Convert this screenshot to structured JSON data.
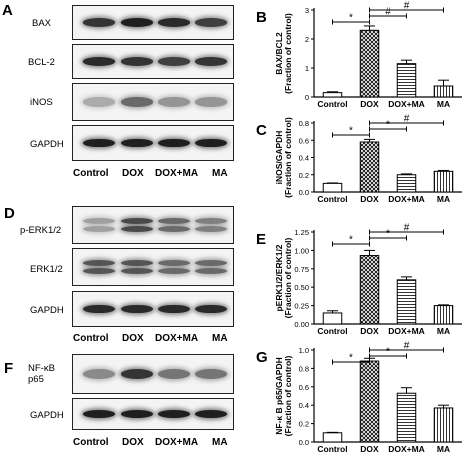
{
  "panels": {
    "A": {
      "letter": "A",
      "blots": [
        {
          "label": "BAX",
          "intensity": [
            0.85,
            0.95,
            0.9,
            0.8
          ]
        },
        {
          "label": "BCL-2",
          "intensity": [
            0.9,
            0.85,
            0.8,
            0.85
          ]
        },
        {
          "label": "iNOS",
          "intensity": [
            0.3,
            0.6,
            0.4,
            0.4
          ]
        },
        {
          "label": "GAPDH",
          "intensity": [
            0.95,
            0.95,
            0.95,
            0.95
          ]
        }
      ],
      "lanes": [
        "Control",
        "DOX",
        "DOX+MA",
        "MA"
      ]
    },
    "D": {
      "letter": "D",
      "blots": [
        {
          "label": "p-ERK1/2",
          "intensity": [
            0.35,
            0.75,
            0.6,
            0.5
          ],
          "double": true
        },
        {
          "label": "ERK1/2",
          "intensity": [
            0.7,
            0.7,
            0.6,
            0.6
          ],
          "double": true
        },
        {
          "label": "GAPDH",
          "intensity": [
            0.9,
            0.9,
            0.9,
            0.9
          ]
        }
      ],
      "lanes": [
        "Control",
        "DOX",
        "DOX+MA",
        "MA"
      ]
    },
    "F": {
      "letter": "F",
      "blots": [
        {
          "label": "NF-κB p65",
          "intensity": [
            0.45,
            0.85,
            0.55,
            0.55
          ]
        },
        {
          "label": "GAPDH",
          "intensity": [
            0.95,
            0.95,
            0.95,
            0.95
          ]
        }
      ],
      "lanes": [
        "Control",
        "DOX",
        "DOX+MA",
        "MA"
      ]
    }
  },
  "chart_data": [
    {
      "letter": "B",
      "type": "bar",
      "categories": [
        "Control",
        "DOX",
        "DOX+MA",
        "MA"
      ],
      "values": [
        0.15,
        2.3,
        1.15,
        0.38
      ],
      "errors": [
        0.03,
        0.15,
        0.12,
        0.2
      ],
      "ylabel": "BAX/BCL2\n(Fraction of control)",
      "ylim": [
        0,
        3
      ],
      "yticks": [
        "0",
        "1",
        "2",
        "3"
      ],
      "ytick_values": [
        0,
        1,
        2,
        3
      ],
      "patterns": [
        "white",
        "cross",
        "hlines",
        "vlines"
      ],
      "significance": [
        {
          "from": 0,
          "to": 1,
          "symbol": "*"
        },
        {
          "from": 1,
          "to": 2,
          "symbol": "#"
        },
        {
          "from": 1,
          "to": 3,
          "symbol": "#"
        }
      ]
    },
    {
      "letter": "C",
      "type": "bar",
      "categories": [
        "Control",
        "DOX",
        "DOX+MA",
        "MA"
      ],
      "values": [
        0.1,
        0.58,
        0.2,
        0.24
      ],
      "errors": [
        0.005,
        0.03,
        0.01,
        0.01
      ],
      "ylabel": "iNOS/GAPDH\n(Fraction of control)",
      "ylim": [
        0,
        0.8
      ],
      "yticks": [
        "0.0",
        "0.2",
        "0.4",
        "0.6",
        "0.8"
      ],
      "ytick_values": [
        0,
        0.2,
        0.4,
        0.6,
        0.8
      ],
      "patterns": [
        "white",
        "cross",
        "hlines",
        "vlines"
      ],
      "significance": [
        {
          "from": 0,
          "to": 1,
          "symbol": "*"
        },
        {
          "from": 1,
          "to": 2,
          "symbol": "*"
        },
        {
          "from": 1,
          "to": 3,
          "symbol": "#"
        }
      ]
    },
    {
      "letter": "E",
      "type": "bar",
      "categories": [
        "Control",
        "DOX",
        "DOX+MA",
        "MA"
      ],
      "values": [
        0.15,
        0.93,
        0.6,
        0.25
      ],
      "errors": [
        0.03,
        0.07,
        0.04,
        0.01
      ],
      "ylabel": "pERK1/2/ERK1/2\n(Fraction of control)",
      "ylim": [
        0,
        1.25
      ],
      "yticks": [
        "0.00",
        "0.25",
        "0.50",
        "0.75",
        "1.00",
        "1.25"
      ],
      "ytick_values": [
        0,
        0.25,
        0.5,
        0.75,
        1.0,
        1.25
      ],
      "patterns": [
        "white",
        "cross",
        "hlines",
        "vlines"
      ],
      "significance": [
        {
          "from": 0,
          "to": 1,
          "symbol": "*"
        },
        {
          "from": 1,
          "to": 2,
          "symbol": "*"
        },
        {
          "from": 1,
          "to": 3,
          "symbol": "#"
        }
      ]
    },
    {
      "letter": "G",
      "type": "bar",
      "categories": [
        "Control",
        "DOX",
        "DOX+MA",
        "MA"
      ],
      "values": [
        0.1,
        0.88,
        0.53,
        0.37
      ],
      "errors": [
        0.005,
        0.03,
        0.06,
        0.03
      ],
      "ylabel": "NF-κ B p65/GAPDH\n(Fraction of control)",
      "ylim": [
        0,
        1.0
      ],
      "yticks": [
        "0.0",
        "0.2",
        "0.4",
        "0.6",
        "0.8",
        "1.0"
      ],
      "ytick_values": [
        0,
        0.2,
        0.4,
        0.6,
        0.8,
        1.0
      ],
      "patterns": [
        "white",
        "cross",
        "hlines",
        "vlines"
      ],
      "significance": [
        {
          "from": 0,
          "to": 1,
          "symbol": "*"
        },
        {
          "from": 1,
          "to": 2,
          "symbol": "*"
        },
        {
          "from": 1,
          "to": 3,
          "symbol": "#"
        }
      ]
    }
  ]
}
